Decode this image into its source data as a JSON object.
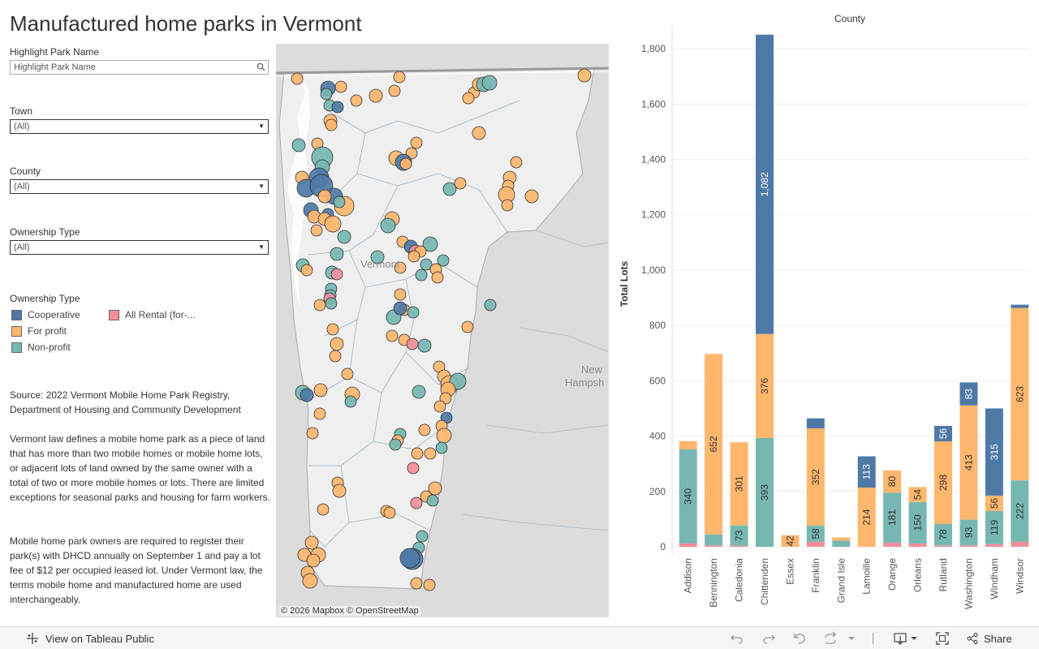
{
  "page": {
    "title": "Manufactured home parks in Vermont"
  },
  "filters": {
    "highlight": {
      "label": "Highlight Park Name",
      "placeholder": "Highlight Park Name"
    },
    "town": {
      "label": "Town",
      "value": "(All)"
    },
    "county": {
      "label": "County",
      "value": "(All)"
    },
    "ownership": {
      "label": "Ownership Type",
      "value": "(All)"
    }
  },
  "legend": {
    "title": "Ownership Type",
    "items": [
      {
        "label": "Cooperative",
        "color": "#4e79a7"
      },
      {
        "label": "All Rental (for-...",
        "color": "#f28e9b"
      },
      {
        "label": "For profit",
        "color": "#ffb66d"
      },
      {
        "label": "Non-profit",
        "color": "#76b7b2"
      }
    ]
  },
  "description": {
    "source": "Source: 2022 Vermont Mobile Home Park Registry, Department of Housing and Community Development",
    "para1": "Vermont law defines a mobile home park as a piece of land that has more than two mobile homes or mobile home lots, or adjacent lots of land owned by the same owner with a total of two or more mobile homes or lots. There are limited exceptions for seasonal parks and housing for farm workers.",
    "para2": "Mobile home park owners are required to register their park(s) with DHCD annually on September 1 and pay a lot fee of $12 per occupied leased lot. Under Vermont law, the terms mobile home and manufactured home are used interchangeably."
  },
  "map": {
    "attribution": "© 2026 Mapbox  © OpenStreetMap",
    "labels": {
      "vermont": "Vermont",
      "nh1": "New",
      "nh2": "Hampsh"
    }
  },
  "chart_data": {
    "type": "bar",
    "stacked": true,
    "title": "County",
    "ylabel": "Total Lots",
    "ylim": [
      0,
      1900
    ],
    "yticks": [
      0,
      200,
      400,
      600,
      800,
      1000,
      1200,
      1400,
      1600,
      1800
    ],
    "ytick_labels": [
      "0",
      "200",
      "400",
      "600",
      "800",
      "1,000",
      "1,200",
      "1,400",
      "1,600",
      "1,800"
    ],
    "categories": [
      "Addison",
      "Bennington",
      "Caledonia",
      "Chittenden",
      "Essex",
      "Franklin",
      "Grand Isle",
      "Lamoille",
      "Orange",
      "Orleans",
      "Rutland",
      "Washington",
      "Windham",
      "Windsor"
    ],
    "series": [
      {
        "name": "All Rental (for-...",
        "color": "#f28e9b",
        "values": [
          12,
          5,
          4,
          0,
          0,
          18,
          0,
          0,
          15,
          12,
          5,
          5,
          10,
          18
        ]
      },
      {
        "name": "Non-profit",
        "color": "#76b7b2",
        "values": [
          340,
          40,
          73,
          393,
          0,
          58,
          22,
          0,
          181,
          150,
          78,
          93,
          119,
          222
        ]
      },
      {
        "name": "For profit",
        "color": "#ffb66d",
        "values": [
          30,
          652,
          301,
          376,
          42,
          352,
          12,
          214,
          80,
          54,
          298,
          413,
          56,
          623
        ]
      },
      {
        "name": "Cooperative",
        "color": "#4e79a7",
        "values": [
          0,
          0,
          0,
          1082,
          0,
          36,
          0,
          113,
          0,
          0,
          56,
          83,
          315,
          12
        ]
      }
    ],
    "data_labels": {
      "Non-profit": [
        340,
        null,
        73,
        393,
        null,
        58,
        null,
        null,
        181,
        150,
        78,
        93,
        119,
        222
      ],
      "For profit": [
        null,
        652,
        301,
        376,
        42,
        352,
        null,
        214,
        80,
        54,
        298,
        413,
        56,
        623
      ],
      "Cooperative": [
        null,
        null,
        null,
        1082,
        null,
        null,
        null,
        113,
        null,
        null,
        56,
        83,
        315,
        null
      ]
    },
    "data_label_text": {
      "Non-profit": [
        "340",
        "",
        "73",
        "393",
        "",
        "58",
        "",
        "",
        "181",
        "150",
        "78",
        "93",
        "119",
        "222"
      ],
      "For profit": [
        "",
        "652",
        "301",
        "376",
        "42",
        "352",
        "",
        "214",
        "80",
        "54",
        "298",
        "413",
        "56",
        "623"
      ],
      "Cooperative": [
        "",
        "",
        "",
        "1,082",
        "",
        "",
        "",
        "113",
        "",
        "",
        "56",
        "83",
        "315",
        ""
      ]
    },
    "grid": true
  },
  "footer": {
    "view_label": "View on Tableau Public",
    "share_label": "Share"
  }
}
